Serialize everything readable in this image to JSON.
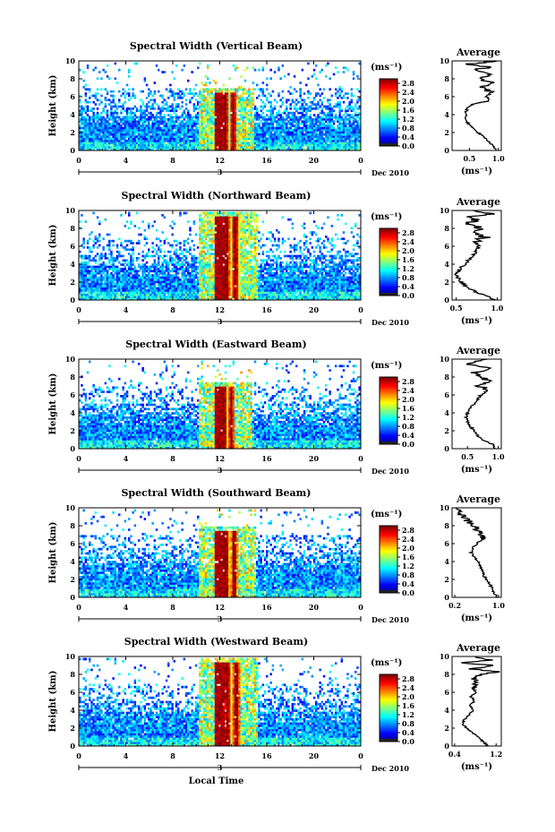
{
  "chart_data": [
    {
      "type": "heatmap",
      "title": "Spectral Width (Vertical Beam)",
      "ylabel": "Height (km)",
      "xlabel": "",
      "x_ticks": [
        "0",
        "4",
        "8",
        "12",
        "16",
        "20",
        "0"
      ],
      "y_ticks": [
        "0",
        "2",
        "4",
        "6",
        "8",
        "10"
      ],
      "xlim": [
        0,
        24
      ],
      "ylim": [
        0,
        10
      ],
      "date_day": "3",
      "date_label": "Dec 2010",
      "colorbar": {
        "unit": "(ms⁻¹)",
        "ticks": [
          "0.0",
          "0.4",
          "0.8",
          "1.2",
          "1.6",
          "2.0",
          "2.4",
          "2.8"
        ],
        "range": [
          0,
          3.0
        ]
      },
      "peak": {
        "time": [
          11.5,
          13.5
        ],
        "top_km": 6.5,
        "max_value": 2.8
      },
      "average": {
        "title": "Average",
        "xlabel": "(ms⁻¹)",
        "x_ticks": [
          "0.5",
          "1.0"
        ],
        "xlim": [
          0.2,
          1.05
        ],
        "y_ticks": [
          "0",
          "2",
          "4",
          "6",
          "8",
          "10"
        ],
        "profile": [
          [
            0.0,
            0.95
          ],
          [
            0.5,
            0.92
          ],
          [
            1.0,
            0.82
          ],
          [
            1.5,
            0.76
          ],
          [
            2.0,
            0.64
          ],
          [
            2.5,
            0.55
          ],
          [
            3.0,
            0.48
          ],
          [
            3.5,
            0.44
          ],
          [
            4.0,
            0.43
          ],
          [
            4.5,
            0.45
          ],
          [
            5.0,
            0.5
          ],
          [
            5.3,
            0.62
          ],
          [
            5.5,
            0.85
          ],
          [
            6.0,
            0.8
          ],
          [
            6.5,
            0.88
          ],
          [
            7.0,
            0.7
          ],
          [
            7.5,
            0.9
          ],
          [
            8.0,
            0.68
          ],
          [
            8.5,
            0.86
          ],
          [
            9.0,
            0.55
          ],
          [
            9.3,
            0.9
          ],
          [
            9.6,
            0.4
          ],
          [
            9.8,
            0.72
          ],
          [
            10.0,
            0.95
          ]
        ]
      }
    },
    {
      "type": "heatmap",
      "title": "Spectral Width (Northward Beam)",
      "ylabel": "Height (km)",
      "xlabel": "",
      "x_ticks": [
        "0",
        "4",
        "8",
        "12",
        "16",
        "20",
        "0"
      ],
      "y_ticks": [
        "0",
        "2",
        "4",
        "6",
        "8",
        "10"
      ],
      "xlim": [
        0,
        24
      ],
      "ylim": [
        0,
        10
      ],
      "date_day": "3",
      "date_label": "Dec 2010",
      "colorbar": {
        "unit": "(ms⁻¹)",
        "ticks": [
          "0.0",
          "0.4",
          "0.8",
          "1.2",
          "1.6",
          "2.0",
          "2.4",
          "2.8"
        ],
        "range": [
          0,
          3.0
        ]
      },
      "peak": {
        "time": [
          11.5,
          13.7
        ],
        "top_km": 9.5,
        "max_value": 2.8
      },
      "average": {
        "title": "Average",
        "xlabel": "(ms⁻¹)",
        "x_ticks": [
          "0.5",
          "1.0"
        ],
        "xlim": [
          0.45,
          1.05
        ],
        "y_ticks": [
          "0",
          "2",
          "4",
          "6",
          "8",
          "10"
        ],
        "profile": [
          [
            0.0,
            0.98
          ],
          [
            0.5,
            0.85
          ],
          [
            1.0,
            0.72
          ],
          [
            1.5,
            0.62
          ],
          [
            2.0,
            0.56
          ],
          [
            2.5,
            0.52
          ],
          [
            3.0,
            0.5
          ],
          [
            3.5,
            0.55
          ],
          [
            4.0,
            0.6
          ],
          [
            4.5,
            0.66
          ],
          [
            5.0,
            0.7
          ],
          [
            5.5,
            0.75
          ],
          [
            6.0,
            0.78
          ],
          [
            6.5,
            0.72
          ],
          [
            7.0,
            0.85
          ],
          [
            7.5,
            0.7
          ],
          [
            8.0,
            0.8
          ],
          [
            8.5,
            0.62
          ],
          [
            9.0,
            0.78
          ],
          [
            9.3,
            0.6
          ],
          [
            9.6,
            0.95
          ],
          [
            10.0,
            0.7
          ]
        ]
      }
    },
    {
      "type": "heatmap",
      "title": "Spectral Width (Eastward Beam)",
      "ylabel": "Height (km)",
      "xlabel": "",
      "x_ticks": [
        "0",
        "4",
        "8",
        "12",
        "16",
        "20",
        "0"
      ],
      "y_ticks": [
        "0",
        "2",
        "4",
        "6",
        "8",
        "10"
      ],
      "xlim": [
        0,
        24
      ],
      "ylim": [
        0,
        10
      ],
      "date_day": "3",
      "date_label": "Dec 2010",
      "colorbar": {
        "unit": "(ms⁻¹)",
        "ticks": [
          "0.0",
          "0.4",
          "0.8",
          "1.2",
          "1.6",
          "2.0",
          "2.4",
          "2.8"
        ],
        "range": [
          0,
          3.0
        ]
      },
      "peak": {
        "time": [
          11.5,
          13.3
        ],
        "top_km": 7.0,
        "max_value": 2.8
      },
      "average": {
        "title": "Average",
        "xlabel": "(ms⁻¹)",
        "x_ticks": [
          "0.5",
          "1.0"
        ],
        "xlim": [
          0.25,
          1.05
        ],
        "y_ticks": [
          "0",
          "2",
          "4",
          "6",
          "8",
          "10"
        ],
        "profile": [
          [
            0.0,
            0.95
          ],
          [
            0.5,
            0.9
          ],
          [
            1.0,
            0.75
          ],
          [
            1.5,
            0.66
          ],
          [
            2.0,
            0.6
          ],
          [
            2.5,
            0.55
          ],
          [
            3.0,
            0.5
          ],
          [
            3.5,
            0.48
          ],
          [
            4.0,
            0.5
          ],
          [
            4.5,
            0.55
          ],
          [
            5.0,
            0.6
          ],
          [
            5.5,
            0.66
          ],
          [
            6.0,
            0.72
          ],
          [
            6.5,
            0.82
          ],
          [
            7.0,
            0.7
          ],
          [
            7.5,
            0.85
          ],
          [
            8.0,
            0.75
          ],
          [
            8.5,
            0.6
          ],
          [
            9.0,
            0.88
          ],
          [
            9.5,
            0.5
          ],
          [
            10.0,
            0.82
          ]
        ]
      }
    },
    {
      "type": "heatmap",
      "title": "Spectral Width (Southward Beam)",
      "ylabel": "Height (km)",
      "xlabel": "",
      "x_ticks": [
        "0",
        "4",
        "8",
        "12",
        "16",
        "20",
        "0"
      ],
      "y_ticks": [
        "0",
        "2",
        "4",
        "6",
        "8",
        "10"
      ],
      "xlim": [
        0,
        24
      ],
      "ylim": [
        0,
        10
      ],
      "date_day": "3",
      "date_label": "Dec 2010",
      "colorbar": {
        "unit": "(ms⁻¹)",
        "ticks": [
          "0.0",
          "0.4",
          "0.8",
          "1.2",
          "1.6",
          "2.0",
          "2.4",
          "2.8"
        ],
        "range": [
          0,
          3.0
        ]
      },
      "peak": {
        "time": [
          11.5,
          13.6
        ],
        "top_km": 7.5,
        "max_value": 2.8
      },
      "average": {
        "title": "Average",
        "xlabel": "(ms⁻¹)",
        "x_ticks": [
          "0.2",
          "1.0"
        ],
        "xlim": [
          0.15,
          1.05
        ],
        "y_ticks": [
          "0",
          "2",
          "4",
          "6",
          "8",
          "10"
        ],
        "profile": [
          [
            0.0,
            0.98
          ],
          [
            0.5,
            0.92
          ],
          [
            1.0,
            0.88
          ],
          [
            1.5,
            0.84
          ],
          [
            2.0,
            0.78
          ],
          [
            2.5,
            0.72
          ],
          [
            3.0,
            0.7
          ],
          [
            3.5,
            0.68
          ],
          [
            4.0,
            0.62
          ],
          [
            4.5,
            0.56
          ],
          [
            5.0,
            0.5
          ],
          [
            5.5,
            0.52
          ],
          [
            6.0,
            0.6
          ],
          [
            6.5,
            0.72
          ],
          [
            7.0,
            0.68
          ],
          [
            7.5,
            0.6
          ],
          [
            8.0,
            0.52
          ],
          [
            8.5,
            0.45
          ],
          [
            9.0,
            0.35
          ],
          [
            9.5,
            0.3
          ],
          [
            10.0,
            0.25
          ]
        ]
      }
    },
    {
      "type": "heatmap",
      "title": "Spectral Width (Westward Beam)",
      "ylabel": "Height (km)",
      "xlabel": "Local Time",
      "x_ticks": [
        "0",
        "4",
        "8",
        "12",
        "16",
        "20",
        "0"
      ],
      "y_ticks": [
        "0",
        "2",
        "4",
        "6",
        "8",
        "10"
      ],
      "xlim": [
        0,
        24
      ],
      "ylim": [
        0,
        10
      ],
      "date_day": "3",
      "date_label": "Dec 2010",
      "colorbar": {
        "unit": "(ms⁻¹)",
        "ticks": [
          "0.0",
          "0.4",
          "0.8",
          "1.2",
          "1.6",
          "2.0",
          "2.4",
          "2.8"
        ],
        "range": [
          0,
          3.0
        ]
      },
      "peak": {
        "time": [
          11.5,
          13.8
        ],
        "top_km": 9.5,
        "max_value": 2.8
      },
      "average": {
        "title": "Average",
        "xlabel": "(ms⁻¹)",
        "x_ticks": [
          "0.4",
          "1.2"
        ],
        "xlim": [
          0.35,
          1.3
        ],
        "y_ticks": [
          "0",
          "2",
          "4",
          "6",
          "8",
          "10"
        ],
        "profile": [
          [
            0.0,
            1.05
          ],
          [
            0.5,
            0.95
          ],
          [
            1.0,
            0.85
          ],
          [
            1.5,
            0.75
          ],
          [
            2.0,
            0.62
          ],
          [
            2.5,
            0.55
          ],
          [
            3.0,
            0.6
          ],
          [
            3.5,
            0.68
          ],
          [
            4.0,
            0.75
          ],
          [
            4.5,
            0.7
          ],
          [
            5.0,
            0.78
          ],
          [
            5.5,
            0.72
          ],
          [
            6.0,
            0.8
          ],
          [
            6.5,
            0.75
          ],
          [
            7.0,
            0.82
          ],
          [
            7.5,
            0.78
          ],
          [
            8.0,
            0.9
          ],
          [
            8.3,
            1.25
          ],
          [
            8.6,
            0.7
          ],
          [
            9.0,
            1.2
          ],
          [
            9.3,
            0.5
          ],
          [
            9.6,
            1.1
          ],
          [
            10.0,
            0.8
          ]
        ]
      }
    }
  ]
}
